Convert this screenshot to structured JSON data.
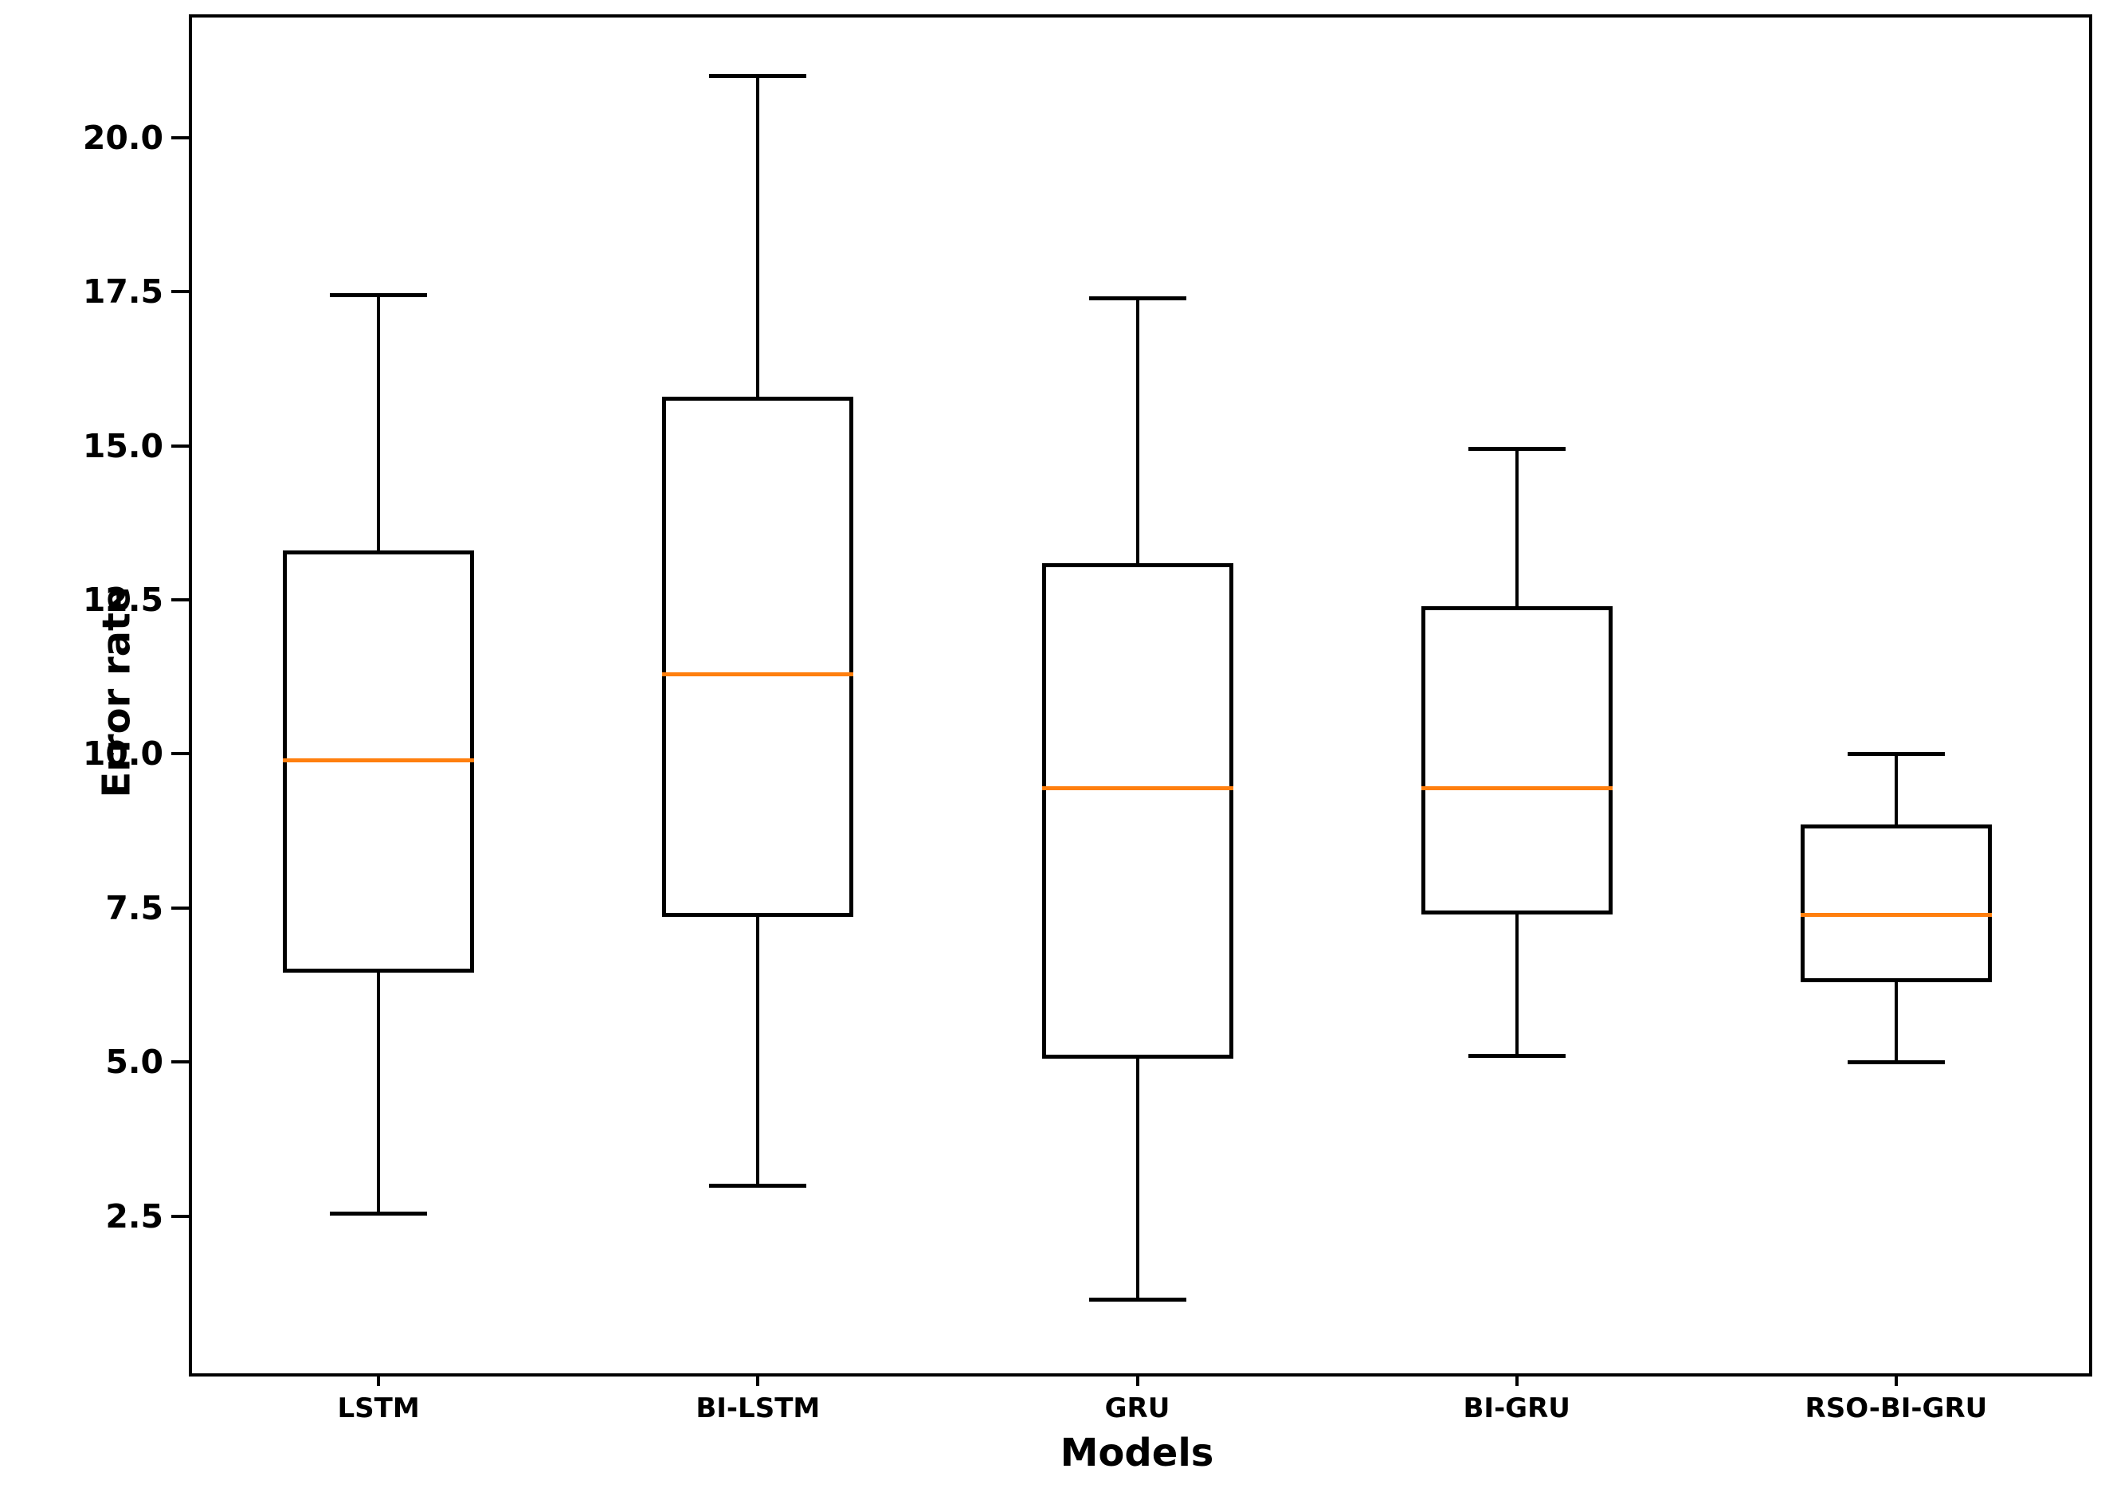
{
  "figure": {
    "background": "#ffffff",
    "ylabel": "Error rate",
    "xlabel": "Models"
  },
  "chart_data": {
    "type": "boxplot",
    "title": "",
    "xlabel": "Models",
    "ylabel": "Error rate",
    "categories": [
      "LSTM",
      "BI-LSTM",
      "GRU",
      "BI-GRU",
      "RSO-BI-GRU"
    ],
    "ylim": [
      0,
      22
    ],
    "yticks": [
      2.5,
      5.0,
      7.5,
      10.0,
      12.5,
      15.0,
      17.5,
      20.0
    ],
    "ytick_labels": [
      "2.5",
      "5.0",
      "7.5",
      "10.0",
      "12.5",
      "15.0",
      "17.5",
      "20.0"
    ],
    "grid": false,
    "legend": "none",
    "box_color": "#000000",
    "median_color": "#ff7f0e",
    "series": [
      {
        "name": "LSTM",
        "whisker_low": 2.55,
        "q1": 6.45,
        "median": 9.9,
        "q3": 13.3,
        "whisker_high": 17.45
      },
      {
        "name": "BI-LSTM",
        "whisker_low": 3.0,
        "q1": 7.35,
        "median": 11.3,
        "q3": 15.8,
        "whisker_high": 21.0
      },
      {
        "name": "GRU",
        "whisker_low": 1.15,
        "q1": 5.05,
        "median": 9.45,
        "q3": 13.1,
        "whisker_high": 17.4
      },
      {
        "name": "BI-GRU",
        "whisker_low": 5.1,
        "q1": 7.4,
        "median": 9.45,
        "q3": 12.4,
        "whisker_high": 14.95
      },
      {
        "name": "RSO-BI-GRU",
        "whisker_low": 5.0,
        "q1": 6.3,
        "median": 7.4,
        "q3": 8.85,
        "whisker_high": 10.0
      }
    ]
  }
}
